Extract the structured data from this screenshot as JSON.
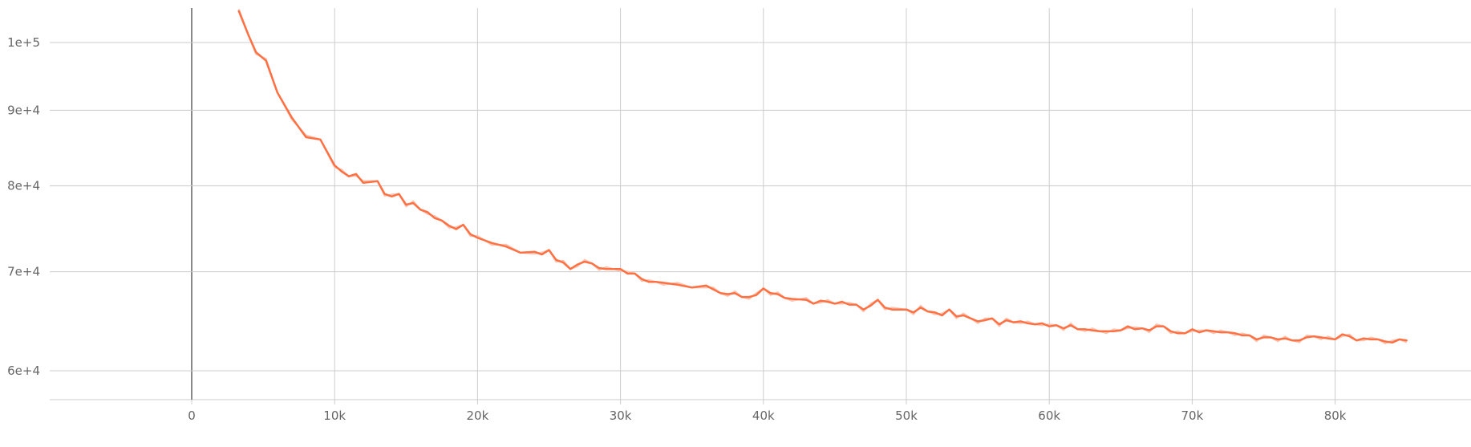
{
  "chart_data": {
    "type": "line",
    "scale_y": "log",
    "xlim": [
      -10000,
      89000
    ],
    "ylim": [
      57000,
      105500
    ],
    "grid": true,
    "x_ticks": [
      {
        "value": 0,
        "label": "0"
      },
      {
        "value": 10000,
        "label": "10k"
      },
      {
        "value": 20000,
        "label": "20k"
      },
      {
        "value": 30000,
        "label": "30k"
      },
      {
        "value": 40000,
        "label": "40k"
      },
      {
        "value": 50000,
        "label": "50k"
      },
      {
        "value": 60000,
        "label": "60k"
      },
      {
        "value": 70000,
        "label": "70k"
      },
      {
        "value": 80000,
        "label": "80k"
      }
    ],
    "y_ticks": [
      {
        "value": 60000,
        "label": "6e+4"
      },
      {
        "value": 70000,
        "label": "7e+4"
      },
      {
        "value": 80000,
        "label": "8e+4"
      },
      {
        "value": 90000,
        "label": "9e+4"
      },
      {
        "value": 100000,
        "label": "1e+5"
      }
    ],
    "colors": {
      "smoothed": "#ff7043",
      "raw": "#f5c6b4"
    },
    "series": [
      {
        "color": "#ff7043",
        "x": [
          3300,
          4000,
          4500,
          5200,
          6000,
          7000,
          8000,
          9000,
          10000,
          10500,
          11000,
          11500,
          12000,
          13000,
          13500,
          14000,
          14500,
          15000,
          15500,
          16000,
          16500,
          17000,
          17500,
          18000,
          18500,
          19000,
          19500,
          20000,
          20500,
          21000,
          22000,
          23000,
          24000,
          24500,
          25000,
          25500,
          26000,
          26500,
          27000,
          27500,
          28000,
          28500,
          29000,
          29500,
          30000,
          30500,
          31000,
          31500,
          32000,
          32500,
          33000,
          34000,
          35000,
          36000,
          36500,
          37000,
          37500,
          38000,
          38500,
          39000,
          39500,
          40000,
          40500,
          41000,
          41500,
          42000,
          43000,
          43500,
          44000,
          44500,
          45000,
          45500,
          46000,
          46500,
          47000,
          47500,
          48000,
          48500,
          49000,
          50000,
          50500,
          51000,
          51500,
          52000,
          52500,
          53000,
          53500,
          54000,
          54500,
          55000,
          55500,
          56000,
          56500,
          57000,
          57500,
          58000,
          58500,
          59000,
          59500,
          60000,
          60500,
          61000,
          61500,
          62000,
          62500,
          63000,
          63500,
          64000,
          64500,
          65000,
          65500,
          66000,
          66500,
          67000,
          67500,
          68000,
          68500,
          69000,
          69500,
          70000,
          70500,
          71000,
          71500,
          72000,
          72500,
          73000,
          73500,
          74000,
          74500,
          75000,
          75500,
          76000,
          76500,
          77000,
          77500,
          78000,
          78500,
          79000,
          79500,
          80000,
          80500,
          81000,
          81500,
          82000,
          82500,
          83000,
          83500,
          84000,
          84500,
          85000
        ],
        "y": [
          105000,
          101000,
          98500,
          97200,
          92500,
          89000,
          86300,
          86000,
          82600,
          81800,
          81200,
          81500,
          80400,
          80600,
          79000,
          78700,
          79000,
          77700,
          77900,
          77100,
          76800,
          76100,
          75800,
          75200,
          74800,
          75300,
          74200,
          73800,
          73500,
          73200,
          72800,
          72100,
          72200,
          71900,
          72400,
          71300,
          71000,
          70300,
          70800,
          71100,
          70900,
          70400,
          70300,
          70300,
          70300,
          69800,
          69800,
          69200,
          68900,
          68900,
          68800,
          68600,
          68300,
          68500,
          68100,
          67700,
          67600,
          67700,
          67300,
          67300,
          67500,
          68200,
          67700,
          67600,
          67200,
          67100,
          67000,
          66600,
          66900,
          66800,
          66600,
          66800,
          66500,
          66500,
          66000,
          66400,
          67000,
          66200,
          66000,
          66000,
          65700,
          66200,
          65800,
          65700,
          65400,
          66000,
          65300,
          65400,
          65100,
          64800,
          64900,
          65100,
          64500,
          64900,
          64700,
          64800,
          64600,
          64500,
          64600,
          64300,
          64400,
          64100,
          64400,
          64000,
          64000,
          63900,
          63800,
          63800,
          63800,
          63900,
          64300,
          64000,
          64100,
          63900,
          64300,
          64300,
          63800,
          63600,
          63600,
          64000,
          63700,
          63900,
          63800,
          63700,
          63700,
          63600,
          63400,
          63400,
          63000,
          63200,
          63200,
          63000,
          63100,
          62900,
          62900,
          63200,
          63300,
          63200,
          63100,
          63000,
          63500,
          63300,
          62900,
          63100,
          63000,
          63000,
          62800,
          62700,
          63000,
          62900
        ]
      }
    ]
  }
}
